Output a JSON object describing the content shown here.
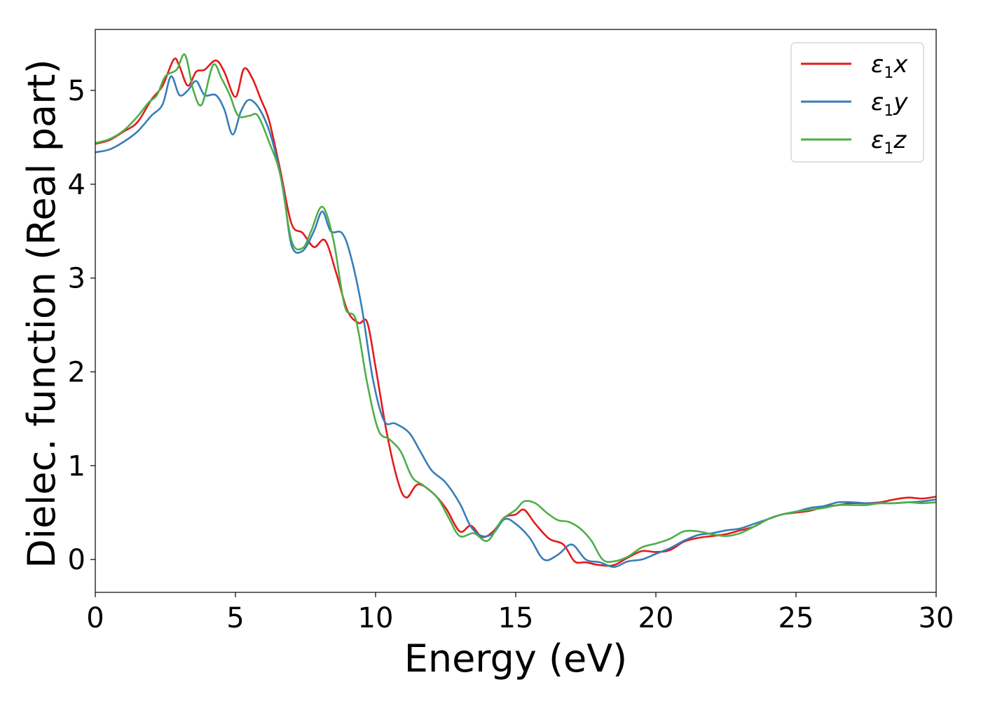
{
  "chart_data": {
    "type": "line",
    "xlabel": "Energy (eV)",
    "ylabel": "Dielec. function (Real part)",
    "xlim": [
      0,
      30
    ],
    "ylim": [
      -0.35,
      5.65
    ],
    "xticks": [
      0,
      5,
      10,
      15,
      20,
      25,
      30
    ],
    "yticks": [
      0,
      1,
      2,
      3,
      4,
      5
    ],
    "grid": false,
    "legend_position": "top-right",
    "series": [
      {
        "name": "ε1x",
        "legend": {
          "base": "ε",
          "sub": "1",
          "suffix": "x"
        },
        "color": "#e41a1c",
        "x": [
          0,
          0.5,
          1.0,
          1.5,
          2.0,
          2.4,
          2.8,
          3.0,
          3.3,
          3.6,
          3.9,
          4.3,
          4.6,
          5.0,
          5.3,
          5.6,
          5.9,
          6.2,
          6.6,
          7.0,
          7.4,
          7.8,
          8.2,
          8.6,
          9.0,
          9.4,
          9.7,
          10.0,
          10.4,
          10.8,
          11.1,
          11.5,
          12.0,
          12.5,
          13.0,
          13.4,
          13.8,
          14.2,
          14.6,
          15.0,
          15.3,
          15.7,
          16.2,
          16.7,
          17.1,
          17.5,
          18.0,
          18.5,
          19.0,
          19.5,
          20.0,
          20.5,
          21.0,
          21.5,
          22.0,
          22.5,
          23.0,
          23.5,
          24.0,
          24.5,
          25.0,
          25.5,
          26.0,
          26.5,
          27.0,
          27.5,
          28.0,
          28.5,
          29.0,
          29.5,
          30.0
        ],
        "values": [
          4.43,
          4.47,
          4.56,
          4.66,
          4.9,
          5.05,
          5.33,
          5.26,
          5.05,
          5.2,
          5.22,
          5.32,
          5.2,
          4.93,
          5.23,
          5.13,
          4.91,
          4.68,
          4.15,
          3.58,
          3.48,
          3.33,
          3.4,
          3.05,
          2.65,
          2.52,
          2.53,
          2.05,
          1.35,
          0.83,
          0.66,
          0.8,
          0.72,
          0.55,
          0.3,
          0.36,
          0.24,
          0.3,
          0.45,
          0.48,
          0.53,
          0.38,
          0.22,
          0.16,
          -0.02,
          -0.03,
          -0.06,
          -0.06,
          0.02,
          0.09,
          0.08,
          0.1,
          0.19,
          0.23,
          0.25,
          0.27,
          0.31,
          0.35,
          0.43,
          0.48,
          0.5,
          0.52,
          0.56,
          0.58,
          0.6,
          0.6,
          0.61,
          0.64,
          0.66,
          0.65,
          0.67
        ]
      },
      {
        "name": "ε1y",
        "legend": {
          "base": "ε",
          "sub": "1",
          "suffix": "y"
        },
        "color": "#377eb8",
        "x": [
          0,
          0.5,
          1.0,
          1.5,
          2.0,
          2.4,
          2.7,
          3.0,
          3.3,
          3.6,
          3.9,
          4.3,
          4.6,
          4.9,
          5.2,
          5.5,
          5.9,
          6.3,
          6.7,
          7.0,
          7.4,
          7.8,
          8.1,
          8.4,
          8.8,
          9.1,
          9.5,
          9.9,
          10.3,
          10.7,
          11.2,
          11.6,
          12.0,
          12.5,
          13.0,
          13.4,
          13.8,
          14.2,
          14.6,
          15.0,
          15.5,
          16.0,
          16.5,
          17.0,
          17.5,
          18.0,
          18.5,
          19.0,
          19.5,
          20.0,
          20.5,
          21.0,
          21.5,
          22.0,
          22.5,
          23.0,
          23.5,
          24.0,
          24.5,
          25.0,
          25.5,
          26.0,
          26.5,
          27.0,
          27.5,
          28.0,
          28.5,
          29.0,
          29.5,
          30.0
        ],
        "values": [
          4.34,
          4.37,
          4.45,
          4.56,
          4.73,
          4.85,
          5.15,
          4.95,
          5.0,
          5.1,
          4.95,
          4.95,
          4.8,
          4.53,
          4.78,
          4.9,
          4.78,
          4.48,
          3.95,
          3.35,
          3.29,
          3.5,
          3.71,
          3.5,
          3.48,
          3.25,
          2.7,
          1.93,
          1.48,
          1.45,
          1.35,
          1.15,
          0.95,
          0.82,
          0.6,
          0.35,
          0.25,
          0.28,
          0.43,
          0.38,
          0.23,
          0.0,
          0.05,
          0.16,
          0.0,
          -0.03,
          -0.08,
          -0.02,
          0.0,
          0.06,
          0.12,
          0.2,
          0.26,
          0.28,
          0.31,
          0.33,
          0.38,
          0.43,
          0.48,
          0.51,
          0.55,
          0.57,
          0.61,
          0.61,
          0.6,
          0.6,
          0.6,
          0.61,
          0.62,
          0.64
        ]
      },
      {
        "name": "ε1z",
        "legend": {
          "base": "ε",
          "sub": "1",
          "suffix": "z"
        },
        "color": "#4daf4a",
        "x": [
          0,
          0.5,
          1.0,
          1.5,
          1.9,
          2.2,
          2.5,
          2.9,
          3.2,
          3.5,
          3.8,
          4.2,
          4.5,
          4.8,
          5.1,
          5.5,
          5.8,
          6.2,
          6.6,
          7.0,
          7.4,
          7.7,
          8.1,
          8.5,
          8.9,
          9.3,
          9.7,
          10.1,
          10.5,
          10.9,
          11.3,
          11.7,
          12.2,
          12.6,
          13.0,
          13.5,
          14.0,
          14.5,
          15.0,
          15.3,
          15.7,
          16.1,
          16.5,
          16.9,
          17.3,
          17.7,
          18.1,
          18.5,
          19.0,
          19.5,
          20.0,
          20.5,
          21.0,
          21.5,
          22.0,
          22.5,
          23.0,
          23.5,
          24.0,
          24.5,
          25.0,
          25.5,
          26.0,
          26.5,
          27.0,
          27.5,
          28.0,
          28.5,
          29.0,
          29.5,
          30.0
        ],
        "values": [
          4.44,
          4.48,
          4.57,
          4.72,
          4.87,
          4.95,
          5.15,
          5.22,
          5.38,
          5.0,
          4.85,
          5.27,
          5.13,
          4.95,
          4.73,
          4.73,
          4.73,
          4.45,
          4.1,
          3.4,
          3.32,
          3.5,
          3.76,
          3.4,
          2.7,
          2.55,
          1.88,
          1.38,
          1.28,
          1.15,
          0.88,
          0.79,
          0.66,
          0.45,
          0.25,
          0.28,
          0.2,
          0.42,
          0.53,
          0.62,
          0.6,
          0.5,
          0.42,
          0.4,
          0.33,
          0.2,
          0.0,
          -0.02,
          0.03,
          0.13,
          0.17,
          0.22,
          0.3,
          0.3,
          0.27,
          0.25,
          0.28,
          0.35,
          0.43,
          0.48,
          0.51,
          0.53,
          0.55,
          0.58,
          0.58,
          0.58,
          0.6,
          0.6,
          0.61,
          0.6,
          0.61
        ]
      }
    ]
  }
}
